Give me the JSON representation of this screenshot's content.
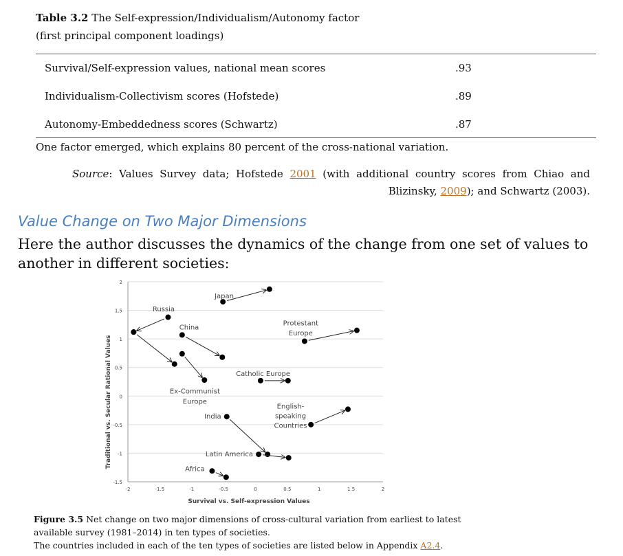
{
  "table": {
    "label": "Table 3.2",
    "title": " The Self-expression/Individualism/Autonomy factor",
    "subtitle": "(first principal component loadings)",
    "rows": [
      {
        "name": "Survival/Self-expression values, national mean scores",
        "value": ".93"
      },
      {
        "name": "Individualism-Collectivism scores (Hofstede)",
        "value": ".89"
      },
      {
        "name": "Autonomy-Embeddedness scores (Schwartz)",
        "value": ".87"
      }
    ],
    "note": "One factor emerged, which explains 80 percent of the cross-national variation.",
    "source_label": "Source",
    "source_a": ": Values Survey data; Hofstede ",
    "link1": "2001",
    "source_b": " (with additional country scores from Chiao and Blizinsky,",
    "link2": "2009",
    "source_c": "); and Schwartz (2003)."
  },
  "section": {
    "heading": "Value Change on Two Major Dimensions",
    "paragraph": "Here the author discusses the dynamics of the change from one set of values to another in different societies:"
  },
  "chart_data": {
    "type": "scatter",
    "title": "",
    "xlabel": "Survival vs. Self-expression Values",
    "ylabel": "Traditional vs. Secular Rational Values",
    "xlim": [
      -2,
      2
    ],
    "ylim": [
      -1.5,
      2
    ],
    "xticks": [
      "-2",
      "-1.5",
      "-1",
      "-0.5",
      "0",
      "0.5",
      "1",
      "1.5",
      "2"
    ],
    "yticks": [
      "2",
      "1.5",
      "1",
      "0.5",
      "0",
      "-0.5",
      "-1",
      "-1.5"
    ],
    "grid": true,
    "series": [
      {
        "name": "Japan",
        "from": [
          -0.51,
          1.65
        ],
        "to": [
          0.22,
          1.87
        ]
      },
      {
        "name": "Russia",
        "from": [
          -1.37,
          1.38
        ],
        "to": [
          -1.91,
          1.12
        ]
      },
      {
        "name": "Ex-Communist Europe (a)",
        "from": [
          -1.91,
          1.12
        ],
        "to": [
          -1.27,
          0.56
        ]
      },
      {
        "name": "Ex-Communist Europe",
        "from": [
          -1.15,
          0.74
        ],
        "to": [
          -0.8,
          0.28
        ]
      },
      {
        "name": "China",
        "from": [
          -1.15,
          1.07
        ],
        "to": [
          -0.52,
          0.68
        ]
      },
      {
        "name": "Protestant Europe",
        "from": [
          0.77,
          0.96
        ],
        "to": [
          1.59,
          1.15
        ]
      },
      {
        "name": "Catholic Europe",
        "from": [
          0.08,
          0.27
        ],
        "to": [
          0.51,
          0.27
        ]
      },
      {
        "name": "English-speaking Countries",
        "from": [
          0.87,
          -0.5
        ],
        "to": [
          1.45,
          -0.23
        ]
      },
      {
        "name": "India",
        "from": [
          -0.45,
          -0.36
        ],
        "to": [
          0.19,
          -1.02
        ]
      },
      {
        "name": "Latin America",
        "from": [
          0.05,
          -1.02
        ],
        "to": [
          0.52,
          -1.08
        ]
      },
      {
        "name": "Africa",
        "from": [
          -0.68,
          -1.31
        ],
        "to": [
          -0.46,
          -1.42
        ]
      }
    ],
    "labels": [
      {
        "text": "Japan",
        "x": -0.49,
        "y": 1.75
      },
      {
        "text": "Russia",
        "x": -1.44,
        "y": 1.52
      },
      {
        "text": "China",
        "x": -1.04,
        "y": 1.2
      },
      {
        "text": "Protestant",
        "x": 0.71,
        "y": 1.27
      },
      {
        "text": "Europe",
        "x": 0.71,
        "y": 1.1
      },
      {
        "text": "Catholic Europe",
        "x": 0.12,
        "y": 0.39
      },
      {
        "text": "Ex-Communist",
        "x": -0.95,
        "y": 0.08
      },
      {
        "text": "Europe",
        "x": -0.95,
        "y": -0.1
      },
      {
        "text": "English-",
        "x": 0.55,
        "y": -0.18
      },
      {
        "text": "speaking",
        "x": 0.55,
        "y": -0.35
      },
      {
        "text": "Countries",
        "x": 0.55,
        "y": -0.52
      },
      {
        "text": "India",
        "x": -0.67,
        "y": -0.36
      },
      {
        "text": "Latin America",
        "x": -0.41,
        "y": -1.02
      },
      {
        "text": "Africa",
        "x": -0.95,
        "y": -1.28
      }
    ]
  },
  "figure": {
    "label": "Figure 3.5",
    "caption": " Net change on two major dimensions of cross-cultural variation from earliest to latest available survey (1981–2014) in ten types of societies.",
    "note": "The countries included in each of the ten types of societies are listed below in Appendix ",
    "link": "A2.4",
    "end": "."
  }
}
